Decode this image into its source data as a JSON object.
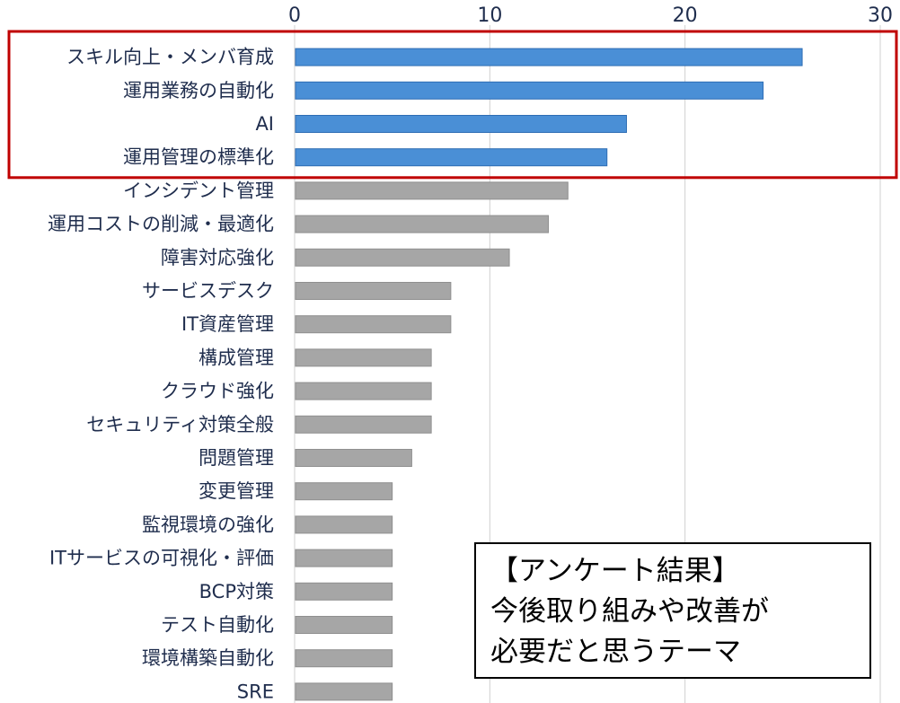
{
  "chart_data": {
    "type": "bar",
    "orientation": "horizontal",
    "categories": [
      "スキル向上・メンバ育成",
      "運用業務の自動化",
      "AI",
      "運用管理の標準化",
      "インシデント管理",
      "運用コストの削減・最適化",
      "障害対応強化",
      "サービスデスク",
      "IT資産管理",
      "構成管理",
      "クラウド強化",
      "セキュリティ対策全般",
      "問題管理",
      "変更管理",
      "監視環境の強化",
      "ITサービスの可視化・評価",
      "BCP対策",
      "テスト自動化",
      "環境構築自動化",
      "SRE"
    ],
    "values": [
      26,
      24,
      17,
      16,
      14,
      13,
      11,
      8,
      8,
      7,
      7,
      7,
      6,
      5,
      5,
      5,
      5,
      5,
      5,
      5
    ],
    "highlighted_count": 4,
    "xlim": [
      0,
      30
    ],
    "xticks": [
      "0",
      "10",
      "20",
      "30"
    ],
    "x_axis_position": "top",
    "grid": true,
    "title": "",
    "xlabel": "",
    "ylabel": ""
  },
  "colors": {
    "highlight_bar": "#4a8fd6",
    "normal_bar": "#a6a6a6",
    "highlight_border": "#c00000",
    "grid": "#d0d0d0"
  },
  "note": {
    "lines": [
      "【アンケート結果】",
      "今後取り組みや改善が",
      "必要だと思うテーマ"
    ]
  }
}
